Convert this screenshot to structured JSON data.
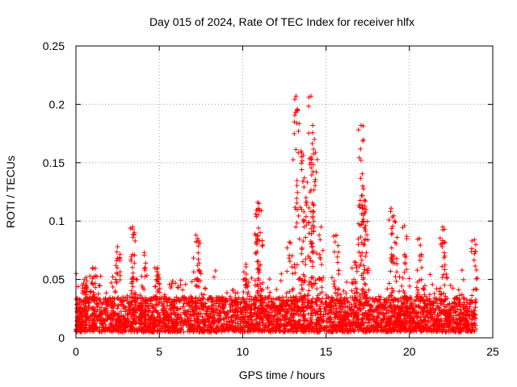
{
  "chart_data": {
    "type": "scatter",
    "title": "Day 015 of 2024, Rate Of TEC Index for receiver hlfx",
    "xlabel": "GPS time / hours",
    "ylabel": "ROTI / TECUs",
    "xlim": [
      0,
      25
    ],
    "ylim": [
      0,
      0.25
    ],
    "x_ticks": [
      0,
      5,
      10,
      15,
      20,
      25
    ],
    "y_ticks": [
      0,
      0.05,
      0.1,
      0.15,
      0.2,
      0.25
    ],
    "x_tick_labels": [
      "0",
      "5",
      "10",
      "15",
      "20",
      "25"
    ],
    "y_tick_labels": [
      "0",
      "0.05",
      "0.1",
      "0.15",
      "0.2",
      "0.25"
    ],
    "grid": true,
    "marker": "+",
    "series": [
      {
        "name": "ROTI",
        "color": "#ff0000",
        "baseline_range_tecu": [
          0.005,
          0.035
        ],
        "time_range_hours": [
          0,
          24
        ],
        "peaks": [
          {
            "x": 0.5,
            "y": 0.05
          },
          {
            "x": 1.0,
            "y": 0.06
          },
          {
            "x": 2.5,
            "y": 0.078
          },
          {
            "x": 3.4,
            "y": 0.095
          },
          {
            "x": 3.5,
            "y": 0.09
          },
          {
            "x": 4.1,
            "y": 0.073
          },
          {
            "x": 4.9,
            "y": 0.06
          },
          {
            "x": 7.2,
            "y": 0.088
          },
          {
            "x": 7.3,
            "y": 0.085
          },
          {
            "x": 10.2,
            "y": 0.063
          },
          {
            "x": 10.9,
            "y": 0.116
          },
          {
            "x": 11.0,
            "y": 0.11
          },
          {
            "x": 11.05,
            "y": 0.09
          },
          {
            "x": 12.8,
            "y": 0.082
          },
          {
            "x": 13.2,
            "y": 0.207
          },
          {
            "x": 13.3,
            "y": 0.195
          },
          {
            "x": 13.5,
            "y": 0.16
          },
          {
            "x": 13.7,
            "y": 0.137
          },
          {
            "x": 13.8,
            "y": 0.12
          },
          {
            "x": 14.1,
            "y": 0.207
          },
          {
            "x": 14.2,
            "y": 0.182
          },
          {
            "x": 14.3,
            "y": 0.17
          },
          {
            "x": 14.1,
            "y": 0.15
          },
          {
            "x": 14.7,
            "y": 0.095
          },
          {
            "x": 15.6,
            "y": 0.088
          },
          {
            "x": 16.7,
            "y": 0.065
          },
          {
            "x": 17.1,
            "y": 0.182
          },
          {
            "x": 17.1,
            "y": 0.152
          },
          {
            "x": 17.2,
            "y": 0.13
          },
          {
            "x": 17.3,
            "y": 0.118
          },
          {
            "x": 17.4,
            "y": 0.11
          },
          {
            "x": 18.9,
            "y": 0.111
          },
          {
            "x": 19.1,
            "y": 0.1
          },
          {
            "x": 19.7,
            "y": 0.096
          },
          {
            "x": 20.6,
            "y": 0.085
          },
          {
            "x": 22.0,
            "y": 0.095
          },
          {
            "x": 22.1,
            "y": 0.093
          },
          {
            "x": 23.9,
            "y": 0.084
          }
        ]
      }
    ]
  }
}
